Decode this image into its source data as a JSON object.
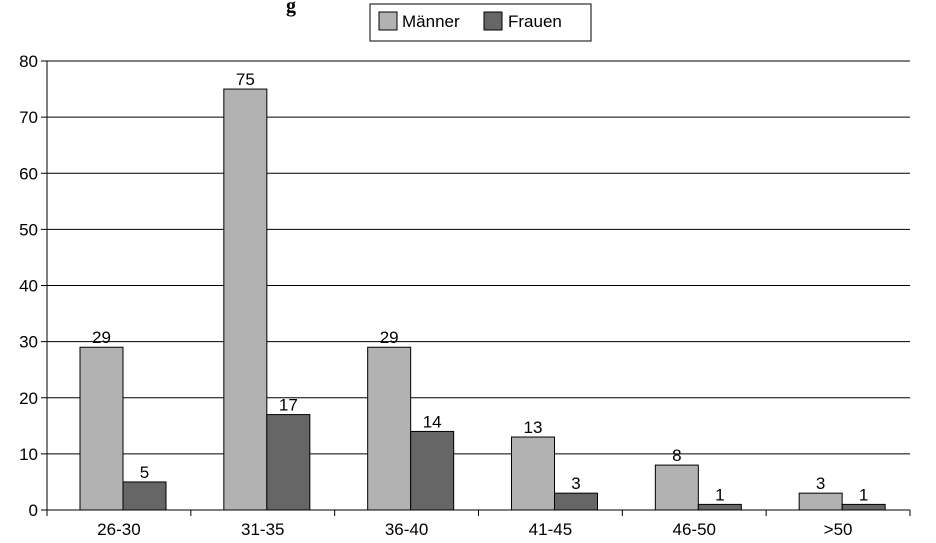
{
  "chart_data": {
    "type": "bar",
    "title": "g",
    "categories": [
      "26-30",
      "31-35",
      "36-40",
      "41-45",
      "46-50",
      ">50"
    ],
    "series": [
      {
        "name": "Männer",
        "values": [
          29,
          75,
          29,
          13,
          8,
          3
        ],
        "color": "#b2b2b2"
      },
      {
        "name": "Frauen",
        "values": [
          5,
          17,
          14,
          3,
          1,
          1
        ],
        "color": "#666666"
      }
    ],
    "ylim": [
      0,
      80
    ],
    "yticks": [
      0,
      10,
      20,
      30,
      40,
      50,
      60,
      70,
      80
    ],
    "grid": true,
    "legend_position": "top-center"
  }
}
